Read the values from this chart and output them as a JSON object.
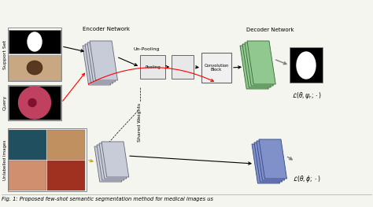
{
  "title": "Fig. 1: Proposed few-shot semantic segmentation method for medical images us",
  "bg_color": "#f5f5f0",
  "encoder_label": "Encoder Network",
  "decoder_label": "Decoder Network",
  "pooling_label": "Pooling",
  "unpooling_label": "Un-Pooling",
  "conv_label": "Convolution\nBlock",
  "shared_weights_label": "Shared Weights",
  "support_set_label": "Support Set",
  "query_label": "Query",
  "unlabelled_label": "Unlabelled Images",
  "loss1": "$\\mathcal{L}(\\theta, \\psi_r; \\cdot)$",
  "loss2": "$\\mathcal{L}(\\theta, \\phi; \\cdot)$"
}
